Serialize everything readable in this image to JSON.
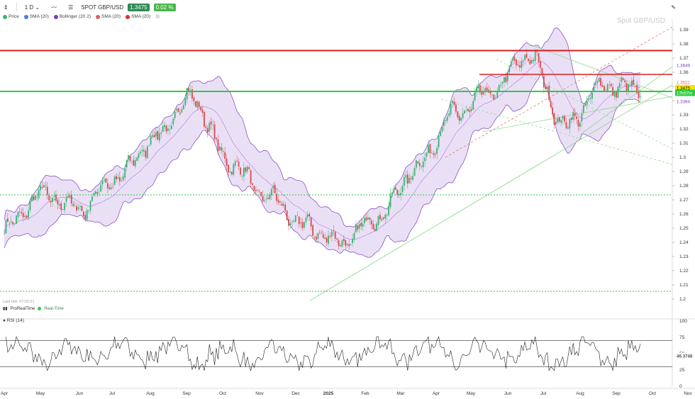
{
  "toolbar": {
    "timeframe": "1 D",
    "symbol": "SPOT GBP/USD",
    "last_price": "1.3475",
    "change": "0.02 %"
  },
  "legend": [
    {
      "label": "Price",
      "color": "#3cb371"
    },
    {
      "label": "SMA (20)",
      "color": "#4a7fd4"
    },
    {
      "label": "Bollinger (20 2)",
      "color": "#7a3fb0"
    },
    {
      "label": "SMA (20)",
      "color": "#e06060"
    },
    {
      "label": "SMA (20)",
      "color": "#e03030"
    },
    {
      "label": "3)",
      "color": ""
    }
  ],
  "watermark": "Spot GBP/USD",
  "last_tick": "Last tick: 07:02:21",
  "feed": {
    "name": "ProRealTime",
    "status": "Real-Time"
  },
  "rsi_label": "RSI (14)",
  "price_badges": {
    "upper_band": "1.3649",
    "sma_red": "1.3522",
    "last": "1.3475",
    "countdown": "17h57m",
    "lower_band": "1.3394"
  },
  "rsi_value": "46.3748",
  "colors": {
    "up": "#3cb371",
    "down": "#d84a4a",
    "band_fill": "#d9c6ef",
    "band_line": "#8a55c0",
    "resistance": "#d62020",
    "support": "#2ecc40",
    "trend": "#8fd98f",
    "dashed_red": "#e07070",
    "rsi_line": "#222222"
  },
  "chart_data": {
    "type": "candlestick",
    "x_ticks": [
      "Apr",
      "May",
      "Jun",
      "Jul",
      "Aug",
      "Sep",
      "Oct",
      "Nov",
      "Dec",
      "2025",
      "Feb",
      "Mar",
      "Apr",
      "May",
      "Jun",
      "Jul",
      "Aug",
      "Sep",
      "Oct",
      "Nov"
    ],
    "y_ticks": [
      "1.39",
      "1.38",
      "1.37",
      "1.36",
      "1.35",
      "1.34",
      "1.33",
      "1.32",
      "1.31",
      "1.3",
      "1.29",
      "1.28",
      "1.27",
      "1.26",
      "1.25",
      "1.24",
      "1.23",
      "1.22",
      "1.21",
      "1.2"
    ],
    "ylim": [
      1.195,
      1.395
    ],
    "rsi_ticks": [
      "100",
      "75",
      "50",
      "25",
      "0"
    ],
    "rsi_levels": [
      30,
      70
    ],
    "horizontal_levels": [
      {
        "price": 1.3753,
        "style": "solid",
        "color": "resistance"
      },
      {
        "price": 1.3585,
        "style": "solid",
        "color": "resistance"
      },
      {
        "price": 1.3465,
        "style": "solid",
        "color": "support"
      },
      {
        "price": 1.2735,
        "style": "dotted",
        "color": "support"
      },
      {
        "price": 1.2055,
        "style": "dotted",
        "color": "support"
      }
    ],
    "monthly_close": [
      {
        "month": "Apr",
        "close": 1.249
      },
      {
        "month": "May",
        "close": 1.274
      },
      {
        "month": "Jun",
        "close": 1.264
      },
      {
        "month": "Jul",
        "close": 1.285
      },
      {
        "month": "Aug",
        "close": 1.313
      },
      {
        "month": "Sep",
        "close": 1.342
      },
      {
        "month": "Oct",
        "close": 1.297
      },
      {
        "month": "Nov",
        "close": 1.273
      },
      {
        "month": "Dec",
        "close": 1.252
      },
      {
        "month": "2025",
        "close": 1.24
      },
      {
        "month": "Feb",
        "close": 1.258
      },
      {
        "month": "Mar",
        "close": 1.292
      },
      {
        "month": "Apr",
        "close": 1.33
      },
      {
        "month": "May",
        "close": 1.346
      },
      {
        "month": "Jun",
        "close": 1.372
      },
      {
        "month": "Jul",
        "close": 1.322
      },
      {
        "month": "Aug",
        "close": 1.351
      },
      {
        "month": "Sep",
        "close": 1.3475
      }
    ]
  }
}
